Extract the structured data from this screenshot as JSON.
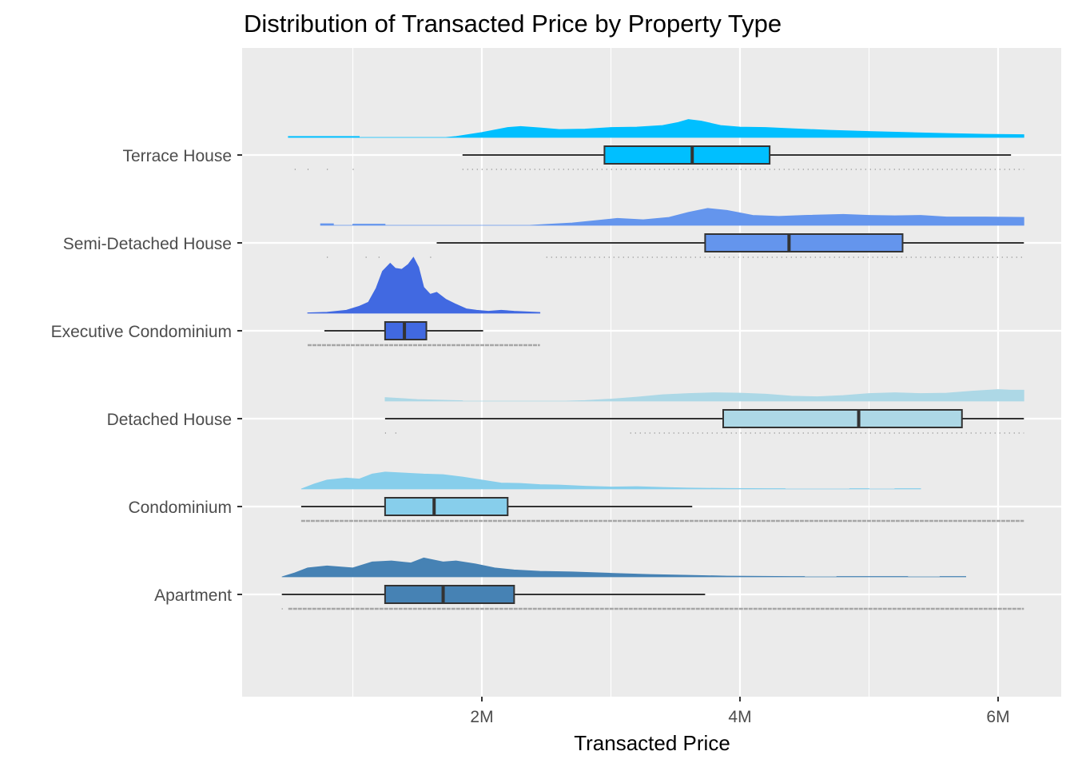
{
  "chart_data": {
    "type": "raincloud",
    "title": "Distribution of Transacted Price by Property Type",
    "xlabel": "Transacted Price",
    "ylabel": "",
    "xlim": [
      200000,
      6550000
    ],
    "x_ticks": [
      {
        "value": 1000000,
        "label": ""
      },
      {
        "value": 2000000,
        "label": "2M"
      },
      {
        "value": 3000000,
        "label": ""
      },
      {
        "value": 4000000,
        "label": "4M"
      },
      {
        "value": 5000000,
        "label": ""
      },
      {
        "value": 6000000,
        "label": "6M"
      }
    ],
    "grid": true,
    "panel_background": "#EBEBEB",
    "categories": [
      "Terrace House",
      "Semi-Detached House",
      "Executive Condominium",
      "Detached House",
      "Condominium",
      "Apartment"
    ],
    "series": [
      {
        "category": "Terrace House",
        "color": "#00BFFF",
        "box": {
          "whisker_low": 1850000,
          "q1": 2950000,
          "median": 3630000,
          "q3": 4230000,
          "whisker_high": 6100000
        },
        "density": [
          [
            500000,
            0.05
          ],
          [
            1050000,
            0.05
          ],
          [
            1050000,
            0
          ],
          [
            1720000,
            0
          ],
          [
            1800000,
            0.05
          ],
          [
            2000000,
            0.25
          ],
          [
            2200000,
            0.5
          ],
          [
            2300000,
            0.55
          ],
          [
            2450000,
            0.48
          ],
          [
            2600000,
            0.4
          ],
          [
            2800000,
            0.42
          ],
          [
            3000000,
            0.5
          ],
          [
            3200000,
            0.52
          ],
          [
            3400000,
            0.6
          ],
          [
            3520000,
            0.75
          ],
          [
            3600000,
            0.9
          ],
          [
            3700000,
            0.82
          ],
          [
            3850000,
            0.6
          ],
          [
            4000000,
            0.52
          ],
          [
            4200000,
            0.5
          ],
          [
            4400000,
            0.44
          ],
          [
            4700000,
            0.36
          ],
          [
            5000000,
            0.3
          ],
          [
            5300000,
            0.25
          ],
          [
            5600000,
            0.2
          ],
          [
            5900000,
            0.16
          ],
          [
            6200000,
            0.14
          ]
        ],
        "rug_range": [
          1850000,
          6200000
        ],
        "rug_extra": [
          550000,
          650000,
          800000,
          1000000
        ]
      },
      {
        "category": "Semi-Detached House",
        "color": "#6495ED",
        "box": {
          "whisker_low": 1650000,
          "q1": 3730000,
          "median": 4380000,
          "q3": 5260000,
          "whisker_high": 6200000
        },
        "density": [
          [
            750000,
            0.08
          ],
          [
            850000,
            0.08
          ],
          [
            850000,
            0
          ],
          [
            1000000,
            0
          ],
          [
            1000000,
            0.06
          ],
          [
            1250000,
            0.06
          ],
          [
            1250000,
            0
          ],
          [
            2370000,
            0
          ],
          [
            2500000,
            0.05
          ],
          [
            2700000,
            0.12
          ],
          [
            2900000,
            0.25
          ],
          [
            3050000,
            0.35
          ],
          [
            3250000,
            0.28
          ],
          [
            3450000,
            0.4
          ],
          [
            3600000,
            0.65
          ],
          [
            3750000,
            0.85
          ],
          [
            3900000,
            0.75
          ],
          [
            4100000,
            0.5
          ],
          [
            4300000,
            0.45
          ],
          [
            4500000,
            0.5
          ],
          [
            4800000,
            0.55
          ],
          [
            5000000,
            0.5
          ],
          [
            5200000,
            0.48
          ],
          [
            5400000,
            0.5
          ],
          [
            5600000,
            0.42
          ],
          [
            5900000,
            0.42
          ],
          [
            6200000,
            0.4
          ]
        ],
        "rug_range": [
          2500000,
          6200000
        ],
        "rug_extra": [
          800000,
          1100000,
          1200000,
          1600000
        ]
      },
      {
        "category": "Executive Condominium",
        "color": "#4169E1",
        "box": {
          "whisker_low": 780000,
          "q1": 1250000,
          "median": 1400000,
          "q3": 1570000,
          "whisker_high": 2010000
        },
        "density": [
          [
            650000,
            0.02
          ],
          [
            800000,
            0.05
          ],
          [
            950000,
            0.15
          ],
          [
            1050000,
            0.35
          ],
          [
            1120000,
            0.55
          ],
          [
            1180000,
            1.25
          ],
          [
            1230000,
            2.1
          ],
          [
            1290000,
            2.5
          ],
          [
            1330000,
            2.25
          ],
          [
            1380000,
            2.2
          ],
          [
            1430000,
            2.45
          ],
          [
            1470000,
            2.8
          ],
          [
            1510000,
            2.3
          ],
          [
            1550000,
            1.3
          ],
          [
            1600000,
            0.95
          ],
          [
            1650000,
            1.05
          ],
          [
            1720000,
            0.7
          ],
          [
            1800000,
            0.45
          ],
          [
            1880000,
            0.22
          ],
          [
            1960000,
            0.15
          ],
          [
            2050000,
            0.1
          ],
          [
            2150000,
            0.15
          ],
          [
            2250000,
            0.1
          ],
          [
            2350000,
            0.07
          ],
          [
            2450000,
            0.04
          ]
        ],
        "rug_range": [
          650000,
          2450000
        ],
        "rug_extra": []
      },
      {
        "category": "Detached House",
        "color": "#ADD8E6",
        "box": {
          "whisker_low": 1250000,
          "q1": 3870000,
          "median": 4920000,
          "q3": 5720000,
          "whisker_high": 6200000
        },
        "density": [
          [
            1250000,
            0.18
          ],
          [
            1500000,
            0.08
          ],
          [
            1850000,
            0.02
          ],
          [
            1850000,
            0
          ],
          [
            2650000,
            0
          ],
          [
            2800000,
            0.03
          ],
          [
            3000000,
            0.1
          ],
          [
            3200000,
            0.2
          ],
          [
            3400000,
            0.32
          ],
          [
            3600000,
            0.38
          ],
          [
            3800000,
            0.42
          ],
          [
            4000000,
            0.4
          ],
          [
            4200000,
            0.35
          ],
          [
            4400000,
            0.25
          ],
          [
            4600000,
            0.22
          ],
          [
            4800000,
            0.28
          ],
          [
            5000000,
            0.38
          ],
          [
            5200000,
            0.42
          ],
          [
            5400000,
            0.38
          ],
          [
            5600000,
            0.4
          ],
          [
            5800000,
            0.5
          ],
          [
            6000000,
            0.58
          ],
          [
            6100000,
            0.55
          ],
          [
            6200000,
            0.55
          ]
        ],
        "rug_range": [
          3150000,
          6200000
        ],
        "rug_extra": [
          1250000,
          1330000
        ]
      },
      {
        "category": "Condominium",
        "color": "#87CEEB",
        "box": {
          "whisker_low": 600000,
          "q1": 1250000,
          "median": 1630000,
          "q3": 2200000,
          "whisker_high": 3630000
        },
        "density": [
          [
            600000,
            0
          ],
          [
            700000,
            0.25
          ],
          [
            800000,
            0.45
          ],
          [
            950000,
            0.55
          ],
          [
            1050000,
            0.5
          ],
          [
            1150000,
            0.75
          ],
          [
            1250000,
            0.85
          ],
          [
            1400000,
            0.8
          ],
          [
            1550000,
            0.75
          ],
          [
            1700000,
            0.72
          ],
          [
            1850000,
            0.6
          ],
          [
            2000000,
            0.45
          ],
          [
            2150000,
            0.3
          ],
          [
            2300000,
            0.28
          ],
          [
            2450000,
            0.22
          ],
          [
            2600000,
            0.2
          ],
          [
            2800000,
            0.14
          ],
          [
            3000000,
            0.1
          ],
          [
            3200000,
            0.12
          ],
          [
            3400000,
            0.08
          ],
          [
            3600000,
            0.05
          ],
          [
            3900000,
            0.03
          ],
          [
            4200000,
            0.02
          ],
          [
            4350000,
            0.02
          ],
          [
            4350000,
            0
          ],
          [
            4850000,
            0
          ],
          [
            4850000,
            0.02
          ],
          [
            5000000,
            0.02
          ],
          [
            5000000,
            0
          ],
          [
            5200000,
            0
          ],
          [
            5200000,
            0.02
          ],
          [
            5400000,
            0.02
          ],
          [
            5400000,
            0
          ]
        ],
        "rug_range": [
          600000,
          6200000
        ],
        "rug_extra": []
      },
      {
        "category": "Apartment",
        "color": "#4682B4",
        "box": {
          "whisker_low": 450000,
          "q1": 1250000,
          "median": 1700000,
          "q3": 2250000,
          "whisker_high": 3730000
        },
        "density": [
          [
            450000,
            0
          ],
          [
            550000,
            0.2
          ],
          [
            650000,
            0.45
          ],
          [
            800000,
            0.55
          ],
          [
            1000000,
            0.45
          ],
          [
            1150000,
            0.75
          ],
          [
            1300000,
            0.8
          ],
          [
            1450000,
            0.7
          ],
          [
            1550000,
            0.95
          ],
          [
            1700000,
            0.75
          ],
          [
            1800000,
            0.8
          ],
          [
            1950000,
            0.65
          ],
          [
            2100000,
            0.45
          ],
          [
            2250000,
            0.35
          ],
          [
            2450000,
            0.28
          ],
          [
            2700000,
            0.25
          ],
          [
            3000000,
            0.18
          ],
          [
            3300000,
            0.12
          ],
          [
            3600000,
            0.08
          ],
          [
            3900000,
            0.04
          ],
          [
            4400000,
            0.02
          ],
          [
            4500000,
            0.02
          ],
          [
            4500000,
            0
          ],
          [
            4750000,
            0
          ],
          [
            4750000,
            0.02
          ],
          [
            5300000,
            0.02
          ],
          [
            5300000,
            0
          ],
          [
            5550000,
            0
          ],
          [
            5550000,
            0.02
          ],
          [
            5750000,
            0.02
          ],
          [
            5750000,
            0
          ]
        ],
        "rug_range": [
          500000,
          6200000
        ],
        "rug_extra": [
          450000
        ]
      }
    ]
  }
}
